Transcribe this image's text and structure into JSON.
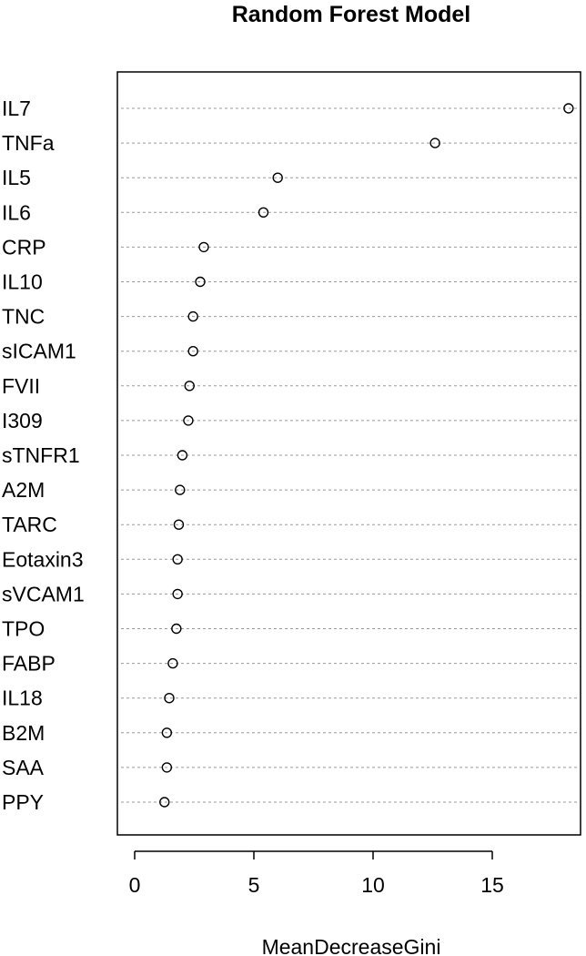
{
  "chart_data": {
    "type": "scatter",
    "title": "Random Forest Model",
    "xlabel": "MeanDecreaseGini",
    "ylabel": "",
    "xlim": [
      -0.7,
      18.9
    ],
    "xticks": [
      0,
      5,
      10,
      15
    ],
    "xtick_labels": [
      "0",
      "5",
      "10",
      "15"
    ],
    "grid": "dotted horizontal lines per category",
    "categories": [
      "IL7",
      "TNFa",
      "IL5",
      "IL6",
      "CRP",
      "IL10",
      "TNC",
      "sICAM1",
      "FVII",
      "I309",
      "sTNFR1",
      "A2M",
      "TARC",
      "Eotaxin3",
      "sVCAM1",
      "TPO",
      "FABP",
      "IL18",
      "B2M",
      "SAA",
      "PPY"
    ],
    "values": [
      18.2,
      12.6,
      6.0,
      5.4,
      2.9,
      2.75,
      2.45,
      2.45,
      2.3,
      2.25,
      2.0,
      1.9,
      1.85,
      1.8,
      1.8,
      1.75,
      1.6,
      1.45,
      1.35,
      1.35,
      1.25
    ]
  }
}
